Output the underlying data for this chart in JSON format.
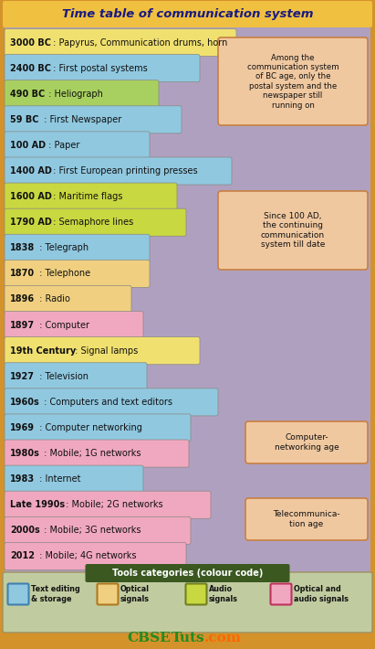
{
  "title": "Time table of communication system",
  "title_bg": "#F0C040",
  "outer_bg": "#D4922A",
  "inner_bg": "#B0A0C0",
  "entries": [
    {
      "year": "3000 BC",
      "text": " : Papyrus, Communication drums, horn",
      "color": "#F0E070",
      "bw": 250
    },
    {
      "year": "2400 BC",
      "text": " : First postal systems",
      "color": "#90C8E0",
      "bw": 210
    },
    {
      "year": "490 BC",
      "text": " : Heliograph",
      "color": "#A8D060",
      "bw": 165
    },
    {
      "year": "59 BC",
      "text": " : First Newspaper",
      "color": "#90C8E0",
      "bw": 190
    },
    {
      "year": "100 AD",
      "text": " : Paper",
      "color": "#90C8E0",
      "bw": 155
    },
    {
      "year": "1400 AD",
      "text": " : First European printing presses",
      "color": "#90C8E0",
      "bw": 245
    },
    {
      "year": "1600 AD",
      "text": " : Maritime flags",
      "color": "#C8D840",
      "bw": 185
    },
    {
      "year": "1790 AD",
      "text": " : Semaphore lines",
      "color": "#C8D840",
      "bw": 195
    },
    {
      "year": "1838",
      "text": " : Telegraph",
      "color": "#90C8E0",
      "bw": 155
    },
    {
      "year": "1870",
      "text": " : Telephone",
      "color": "#F0D080",
      "bw": 155
    },
    {
      "year": "1896",
      "text": " : Radio",
      "color": "#F0D080",
      "bw": 135
    },
    {
      "year": "1897",
      "text": " : Computer",
      "color": "#F0A8C0",
      "bw": 148
    },
    {
      "year": "19th Century",
      "text": " : Signal lamps",
      "color": "#F0E070",
      "bw": 210
    },
    {
      "year": "1927",
      "text": " : Television",
      "color": "#90C8E0",
      "bw": 152
    },
    {
      "year": "1960s",
      "text": " : Computers and text editors",
      "color": "#90C8E0",
      "bw": 230
    },
    {
      "year": "1969",
      "text": " : Computer networking",
      "color": "#90C8E0",
      "bw": 200
    },
    {
      "year": "1980s",
      "text": " : Mobile; 1G networks",
      "color": "#F0A8C0",
      "bw": 198
    },
    {
      "year": "1983",
      "text": " : Internet",
      "color": "#90C8E0",
      "bw": 148
    },
    {
      "year": "Late 1990s",
      "text": " : Mobile; 2G networks",
      "color": "#F0A8C0",
      "bw": 222
    },
    {
      "year": "2000s",
      "text": " : Mobile; 3G networks",
      "color": "#F0A8C0",
      "bw": 200
    },
    {
      "year": "2012",
      "text": " : Mobile; 4G networks",
      "color": "#F0A8C0",
      "bw": 195
    }
  ],
  "note1_text": "Among the\ncommunication system\nof BC age, only the\npostal system and the\nnewspaper still\nrunning on",
  "note2_text": "Since 100 AD,\nthe continuing\ncommunication\nsystem till date",
  "note3_text": "Computer-\nnetworking age",
  "note4_text": "Telecommunica-\ntion age",
  "note_bg": "#F0C8A0",
  "note_edge": "#C88040",
  "legend_bg": "#C0CCA0",
  "legend_title": "Tools categories (colour code)",
  "legend_title_bg": "#3A5820",
  "legend_items": [
    {
      "label": "Text editing\n& storage",
      "color": "#90C8E0",
      "border": "#4080B0"
    },
    {
      "label": "Optical\nsignals",
      "color": "#F0D080",
      "border": "#B07820"
    },
    {
      "label": "Audio\nsignals",
      "color": "#C8D840",
      "border": "#708020"
    },
    {
      "label": "Optical and\naudio signals",
      "color": "#F0A8C0",
      "border": "#C03060"
    }
  ]
}
